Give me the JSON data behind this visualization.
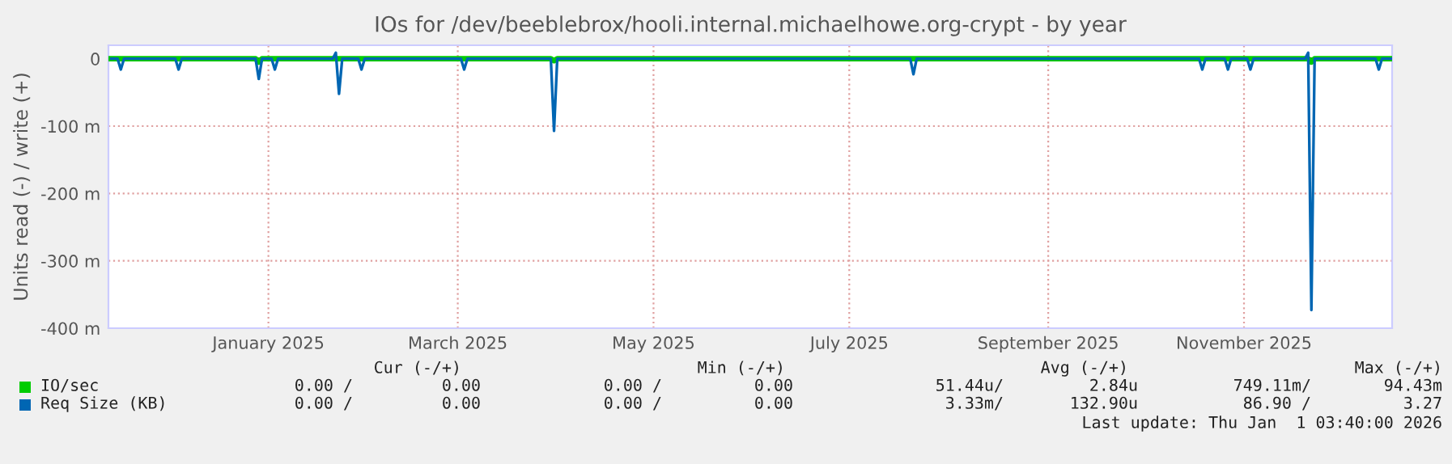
{
  "chart_data": {
    "type": "line",
    "title": "IOs for /dev/beeblebrox/hooli.internal.michaelhowe.org-crypt - by year",
    "ylabel": "Units read (-) / write (+)",
    "xlim": [
      "2024-11-27T03:40",
      "2026-01-01T03:40"
    ],
    "xticks": [
      {
        "value": "2025-01-16",
        "label": "January 2025"
      },
      {
        "value": "2025-03-16",
        "label": "March 2025"
      },
      {
        "value": "2025-05-16",
        "label": "May 2025"
      },
      {
        "value": "2025-07-16",
        "label": "July 2025"
      },
      {
        "value": "2025-09-16",
        "label": "September 2025"
      },
      {
        "value": "2025-11-16",
        "label": "November 2025"
      }
    ],
    "ylim": [
      -400,
      20
    ],
    "yticks": [
      {
        "value": -400,
        "label": "-400 m"
      },
      {
        "value": -300,
        "label": "-300 m"
      },
      {
        "value": -200,
        "label": "-200 m"
      },
      {
        "value": -100,
        "label": "-100 m"
      },
      0
    ],
    "grid": true,
    "legend": "bottom",
    "ref_lines": [
      {
        "axis": "y",
        "value": 0,
        "color": "#000000"
      }
    ],
    "series": [
      {
        "name": "IO/sec",
        "color": "#00cc00",
        "x": [
          "2024-11-28",
          "2025-01-12",
          "2025-01-13",
          "2025-01-14",
          "2025-04-14",
          "2025-04-15",
          "2025-04-16",
          "2025-12-06",
          "2025-12-07",
          "2025-12-08",
          "2026-01-01"
        ],
        "values": [
          0,
          0,
          -5,
          0,
          0,
          -3,
          0,
          0,
          -5,
          0,
          0
        ]
      },
      {
        "name": "Req Size (KB)",
        "color": "#0066b3",
        "x": [
          "2024-11-28",
          "2024-11-30",
          "2024-12-01",
          "2024-12-02",
          "2024-12-18",
          "2024-12-19",
          "2024-12-20",
          "2025-01-12",
          "2025-01-13",
          "2025-01-14",
          "2025-01-17",
          "2025-01-18",
          "2025-01-19",
          "2025-02-05",
          "2025-02-06",
          "2025-02-07",
          "2025-02-08",
          "2025-02-13",
          "2025-02-14",
          "2025-02-15",
          "2025-03-17",
          "2025-03-18",
          "2025-03-19",
          "2025-04-14",
          "2025-04-15",
          "2025-04-16",
          "2025-08-04",
          "2025-08-05",
          "2025-08-06",
          "2025-11-02",
          "2025-11-03",
          "2025-11-04",
          "2025-11-10",
          "2025-11-11",
          "2025-11-12",
          "2025-11-17",
          "2025-11-18",
          "2025-11-19",
          "2025-12-05",
          "2025-12-06",
          "2025-12-07",
          "2025-12-08",
          "2025-12-27",
          "2025-12-28",
          "2025-12-29",
          "2026-01-01"
        ],
        "values": [
          0,
          0,
          -16,
          0,
          0,
          -16,
          0,
          0,
          -30,
          0,
          0,
          -16,
          0,
          0,
          9,
          -52,
          0,
          0,
          -16,
          0,
          0,
          -16,
          0,
          0,
          -107,
          0,
          0,
          -23,
          0,
          0,
          -16,
          0,
          0,
          -16,
          0,
          0,
          -16,
          0,
          0,
          9,
          -373,
          0,
          0,
          -16,
          0,
          0
        ]
      }
    ],
    "annotations": [
      "Cur (-/+)",
      "Min (-/+)",
      "Avg (-/+)",
      "Max (-/+)",
      "0.00 /",
      "0.00",
      "0.00 /",
      "0.00",
      "51.44u/",
      "2.84u",
      "749.11m/",
      "94.43m",
      "0.00 /",
      "0.00",
      "0.00 /",
      "0.00",
      "3.33m/",
      "132.90u",
      "86.90 /",
      "3.27",
      "Last update: Thu Jan  1 03:40:00 2026"
    ]
  }
}
